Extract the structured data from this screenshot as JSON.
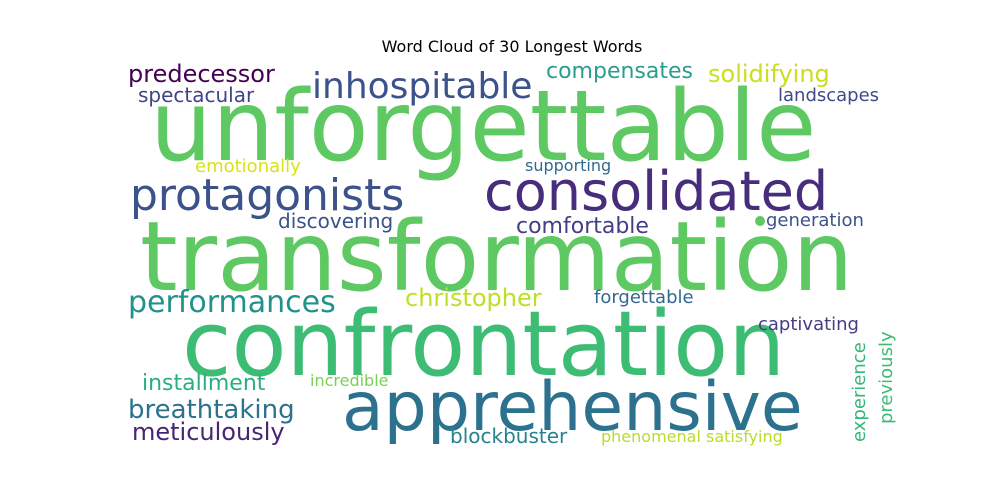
{
  "chart_data": {
    "type": "wordcloud",
    "title": "Word Cloud of 30 Longest Words",
    "words": [
      {
        "text": "unforgettable",
        "color": "#5ec962"
      },
      {
        "text": "transformation",
        "color": "#5ec962"
      },
      {
        "text": "confrontation",
        "color": "#3dbc74"
      },
      {
        "text": "apprehensive",
        "color": "#2c728e"
      },
      {
        "text": "consolidated",
        "color": "#472d7b"
      },
      {
        "text": "protagonists",
        "color": "#3b528b"
      },
      {
        "text": "inhospitable",
        "color": "#3b528b"
      },
      {
        "text": "performances",
        "color": "#21918c"
      },
      {
        "text": "breathtaking",
        "color": "#2c728e"
      },
      {
        "text": "meticulously",
        "color": "#482475"
      },
      {
        "text": "installment",
        "color": "#29af7f"
      },
      {
        "text": "christopher",
        "color": "#bddf26"
      },
      {
        "text": "predecessor",
        "color": "#440154"
      },
      {
        "text": "compensates",
        "color": "#2a9d8f"
      },
      {
        "text": "solidifying",
        "color": "#c8e020"
      },
      {
        "text": "spectacular",
        "color": "#414487"
      },
      {
        "text": "landscapes",
        "color": "#3e4a89"
      },
      {
        "text": "emotionally",
        "color": "#d8e219"
      },
      {
        "text": "supporting",
        "color": "#31688e"
      },
      {
        "text": "discovering",
        "color": "#3b528b"
      },
      {
        "text": "comfortable",
        "color": "#433e85"
      },
      {
        "text": "generation",
        "color": "#3b528b"
      },
      {
        "text": "forgettable",
        "color": "#31688e"
      },
      {
        "text": "captivating",
        "color": "#433e85"
      },
      {
        "text": "incredible",
        "color": "#7ad151"
      },
      {
        "text": "blockbuster",
        "color": "#26828e"
      },
      {
        "text": "phenomenal",
        "color": "#b5de2b"
      },
      {
        "text": "satisfying",
        "color": "#b5de2b"
      },
      {
        "text": "experience",
        "color": "#35b779"
      },
      {
        "text": "previously",
        "color": "#3dbc74"
      }
    ]
  }
}
